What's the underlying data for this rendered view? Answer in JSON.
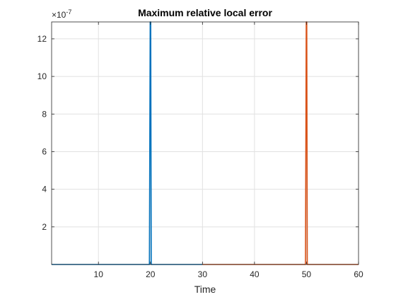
{
  "chart_data": {
    "type": "line",
    "title": "Maximum relative local error",
    "xlabel": "Time",
    "ylabel": "",
    "xlim": [
      1,
      60
    ],
    "ylim": [
      0,
      12.9
    ],
    "y_exponent_label": "×10",
    "y_exponent_power": "-7",
    "x_ticks": [
      10,
      20,
      30,
      40,
      50,
      60
    ],
    "y_ticks": [
      2,
      4,
      6,
      8,
      10,
      12
    ],
    "x_tick_labels": [
      "10",
      "20",
      "30",
      "40",
      "50",
      "60"
    ],
    "y_tick_labels": [
      "2",
      "4",
      "6",
      "8",
      "10",
      "12"
    ],
    "grid": true,
    "series": [
      {
        "color": "#0072BD",
        "x": [
          1,
          19.8,
          19.95,
          20.05,
          20.15,
          30
        ],
        "y": [
          0,
          0,
          12.9,
          12.9,
          0,
          0
        ]
      },
      {
        "color": "#D95319",
        "x": [
          30,
          49.8,
          49.95,
          50.05,
          50.15,
          60
        ],
        "y": [
          0,
          0,
          12.9,
          12.9,
          0,
          0
        ]
      }
    ]
  }
}
